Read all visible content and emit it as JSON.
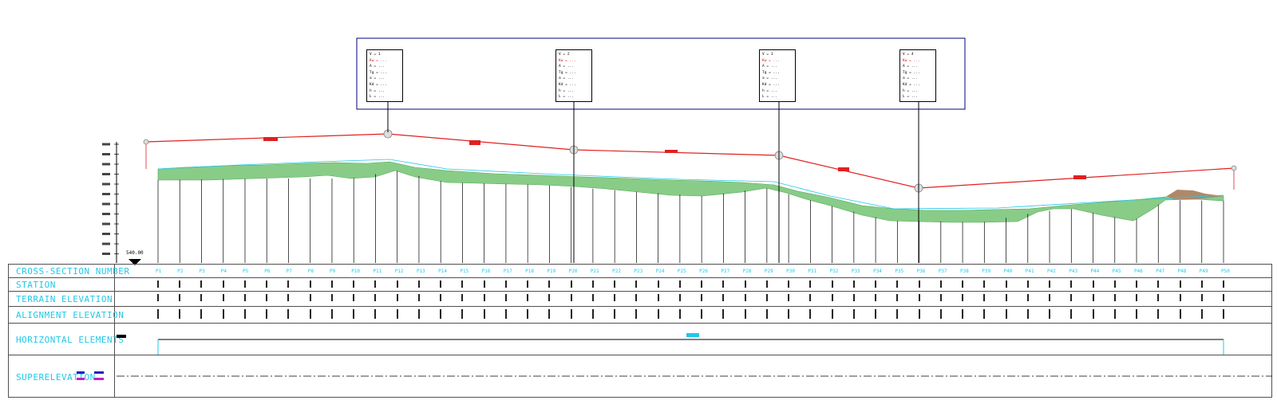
{
  "bands": {
    "cross_section_number": "CROSS-SECTION NUMBER",
    "station": "STATION",
    "terrain_elevation": "TERRAIN ELEVATION",
    "alignment_elevation": "ALIGNMENT ELEVATION",
    "horizontal_elements": "HORIZONTAL ELEMENTS",
    "superelevation": "SUPERELEVATION"
  },
  "datum_label": "540.00",
  "cross_sections": [
    "P1",
    "P2",
    "P3",
    "P4",
    "P5",
    "P6",
    "P7",
    "P8",
    "P9",
    "P10",
    "P11",
    "P12",
    "P13",
    "P14",
    "P15",
    "P16",
    "P17",
    "P18",
    "P19",
    "P20",
    "P21",
    "P22",
    "P23",
    "P24",
    "P25",
    "P26",
    "P27",
    "P28",
    "P29",
    "P30",
    "P31",
    "P32",
    "P33",
    "P34",
    "P35",
    "P36",
    "P37",
    "P38",
    "P39",
    "P40",
    "P41",
    "P42",
    "P43",
    "P44",
    "P45",
    "P46",
    "P47",
    "P48",
    "P49",
    "P50"
  ],
  "pvi_boxes": [
    {
      "title": "V = 1",
      "lines": [
        "Kw = ...",
        "A = ...",
        "Tg = ...",
        "a = ...",
        "Kd = ...",
        "h = ...",
        "L = ..."
      ]
    },
    {
      "title": "V = 2",
      "lines": [
        "Kw = ...",
        "A = ...",
        "Tg = ...",
        "a = ...",
        "Kd = ...",
        "h = ...",
        "L = ..."
      ]
    },
    {
      "title": "V = 3",
      "lines": [
        "Kw = ...",
        "A = ...",
        "Tg = ...",
        "a = ...",
        "Kd = ...",
        "h = ...",
        "L = ..."
      ]
    },
    {
      "title": "V = 4",
      "lines": [
        "Kw = ...",
        "A = ...",
        "Tg = ...",
        "a = ...",
        "Kd = ...",
        "h = ...",
        "L = ..."
      ]
    }
  ],
  "colors": {
    "terrain_fill": "#88cc88",
    "grade_line": "#e02020",
    "cyan_text": "#22c8e8",
    "frame": "#000080",
    "cut_fill": "#b08868"
  }
}
